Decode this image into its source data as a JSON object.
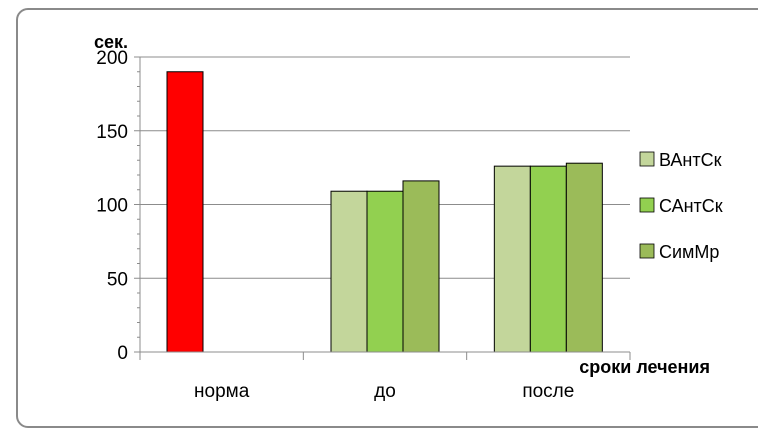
{
  "chart_data": {
    "type": "bar",
    "title": "",
    "ylabel": "сек.",
    "xlabel": "сроки лечения",
    "ylim": [
      0,
      200
    ],
    "yticks": [
      0,
      50,
      100,
      150,
      200
    ],
    "grid": true,
    "legend_position": "right",
    "categories": [
      "норма",
      "до",
      "после"
    ],
    "reference": {
      "category": "норма",
      "value": 190,
      "color": "#ff0000"
    },
    "series": [
      {
        "name": "ВАнтСк",
        "color": "#c3d69b",
        "values": [
          null,
          109,
          126
        ]
      },
      {
        "name": "САнтСк",
        "color": "#92d050",
        "values": [
          null,
          109,
          126
        ]
      },
      {
        "name": "СимМр",
        "color": "#9bbb59",
        "values": [
          null,
          116,
          128
        ]
      }
    ]
  }
}
